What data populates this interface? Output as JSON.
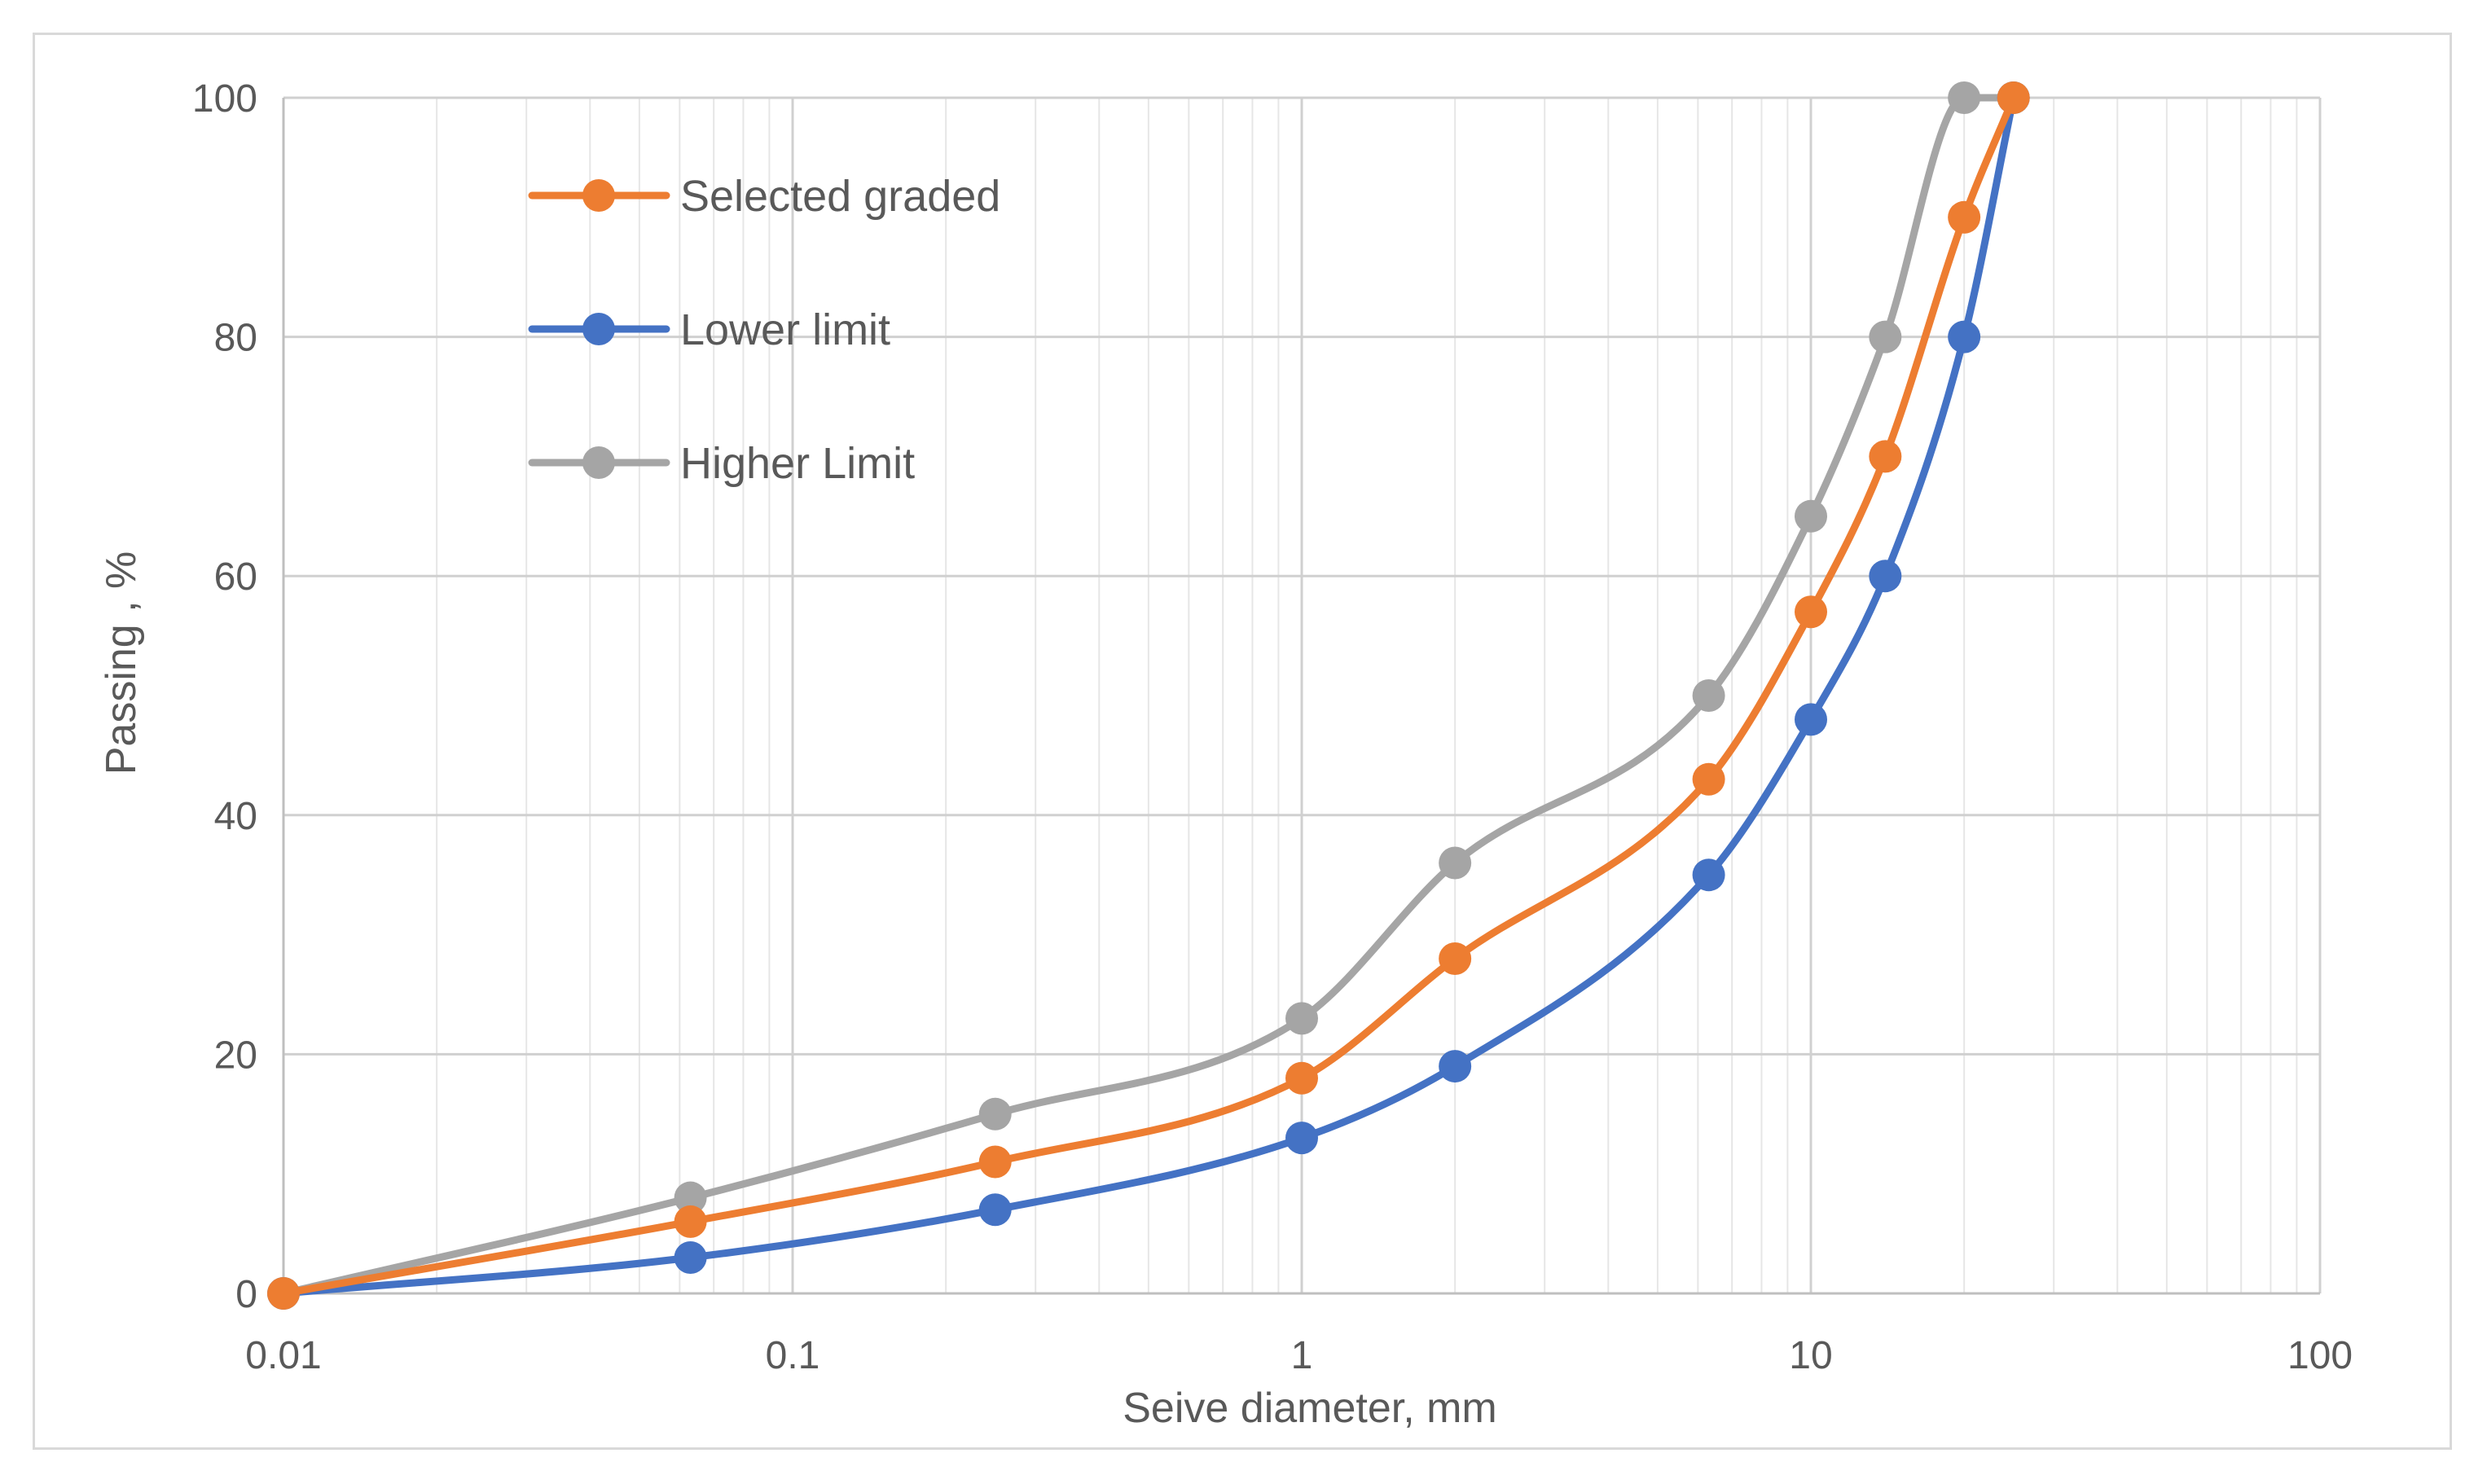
{
  "chart_data": {
    "type": "line",
    "title": "",
    "xlabel": "Seive diameter, mm",
    "ylabel": "Passing , %",
    "xscale": "log",
    "xlim": [
      0.01,
      100
    ],
    "ylim": [
      0,
      100
    ],
    "x_ticks": [
      "0.01",
      "0.1",
      "1",
      "10",
      "100"
    ],
    "y_ticks": [
      "0",
      "20",
      "40",
      "60",
      "80",
      "100"
    ],
    "grid": true,
    "legend_position": "top-left",
    "series": [
      {
        "name": "Selected graded",
        "color": "#ed7d31",
        "x": [
          0.01,
          0.063,
          0.25,
          1,
          2,
          6.3,
          10,
          14,
          20,
          25
        ],
        "y": [
          0,
          6,
          11,
          18,
          28,
          43,
          57,
          70,
          90,
          100
        ]
      },
      {
        "name": "Lower limit",
        "color": "#4472c4",
        "x": [
          0.01,
          0.063,
          0.25,
          1,
          2,
          6.3,
          10,
          14,
          20,
          25
        ],
        "y": [
          0,
          3,
          7,
          13,
          19,
          35,
          48,
          60,
          80,
          100
        ]
      },
      {
        "name": "Higher Limit",
        "color": "#a5a5a5",
        "x": [
          0.01,
          0.063,
          0.25,
          1,
          2,
          6.3,
          10,
          14,
          20,
          25
        ],
        "y": [
          0,
          8,
          15,
          23,
          36,
          50,
          65,
          80,
          100,
          100
        ]
      }
    ]
  }
}
